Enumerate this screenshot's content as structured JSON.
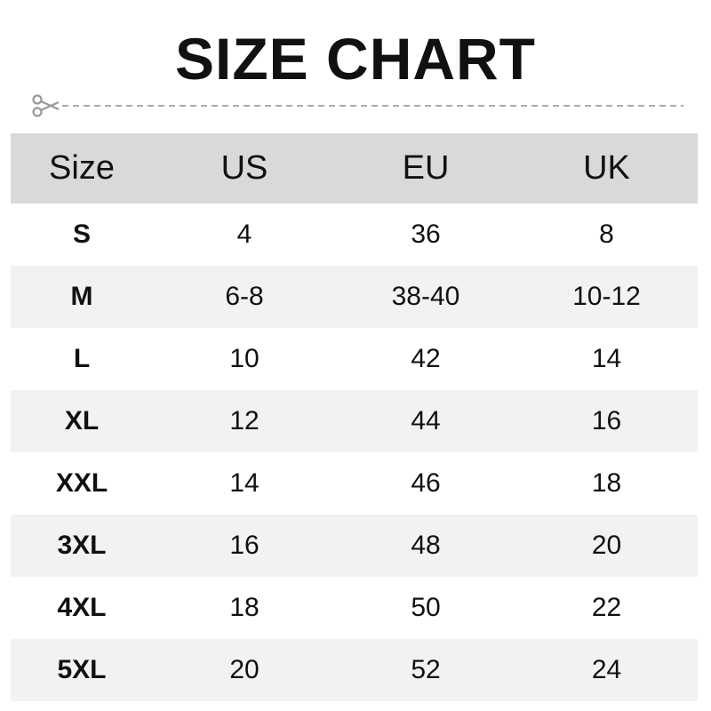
{
  "title": "SIZE CHART",
  "icons": {
    "cut": "scissors-icon"
  },
  "colors": {
    "header_bg": "#d9d9d9",
    "alt_row_bg": "#f2f2f2",
    "dash": "#aaaaaa"
  },
  "chart_data": {
    "type": "table",
    "title": "SIZE CHART",
    "columns": [
      "Size",
      "US",
      "EU",
      "UK"
    ],
    "rows": [
      [
        "S",
        "4",
        "36",
        "8"
      ],
      [
        "M",
        "6-8",
        "38-40",
        "10-12"
      ],
      [
        "L",
        "10",
        "42",
        "14"
      ],
      [
        "XL",
        "12",
        "44",
        "16"
      ],
      [
        "XXL",
        "14",
        "46",
        "18"
      ],
      [
        "3XL",
        "16",
        "48",
        "20"
      ],
      [
        "4XL",
        "18",
        "50",
        "22"
      ],
      [
        "5XL",
        "20",
        "52",
        "24"
      ]
    ]
  }
}
